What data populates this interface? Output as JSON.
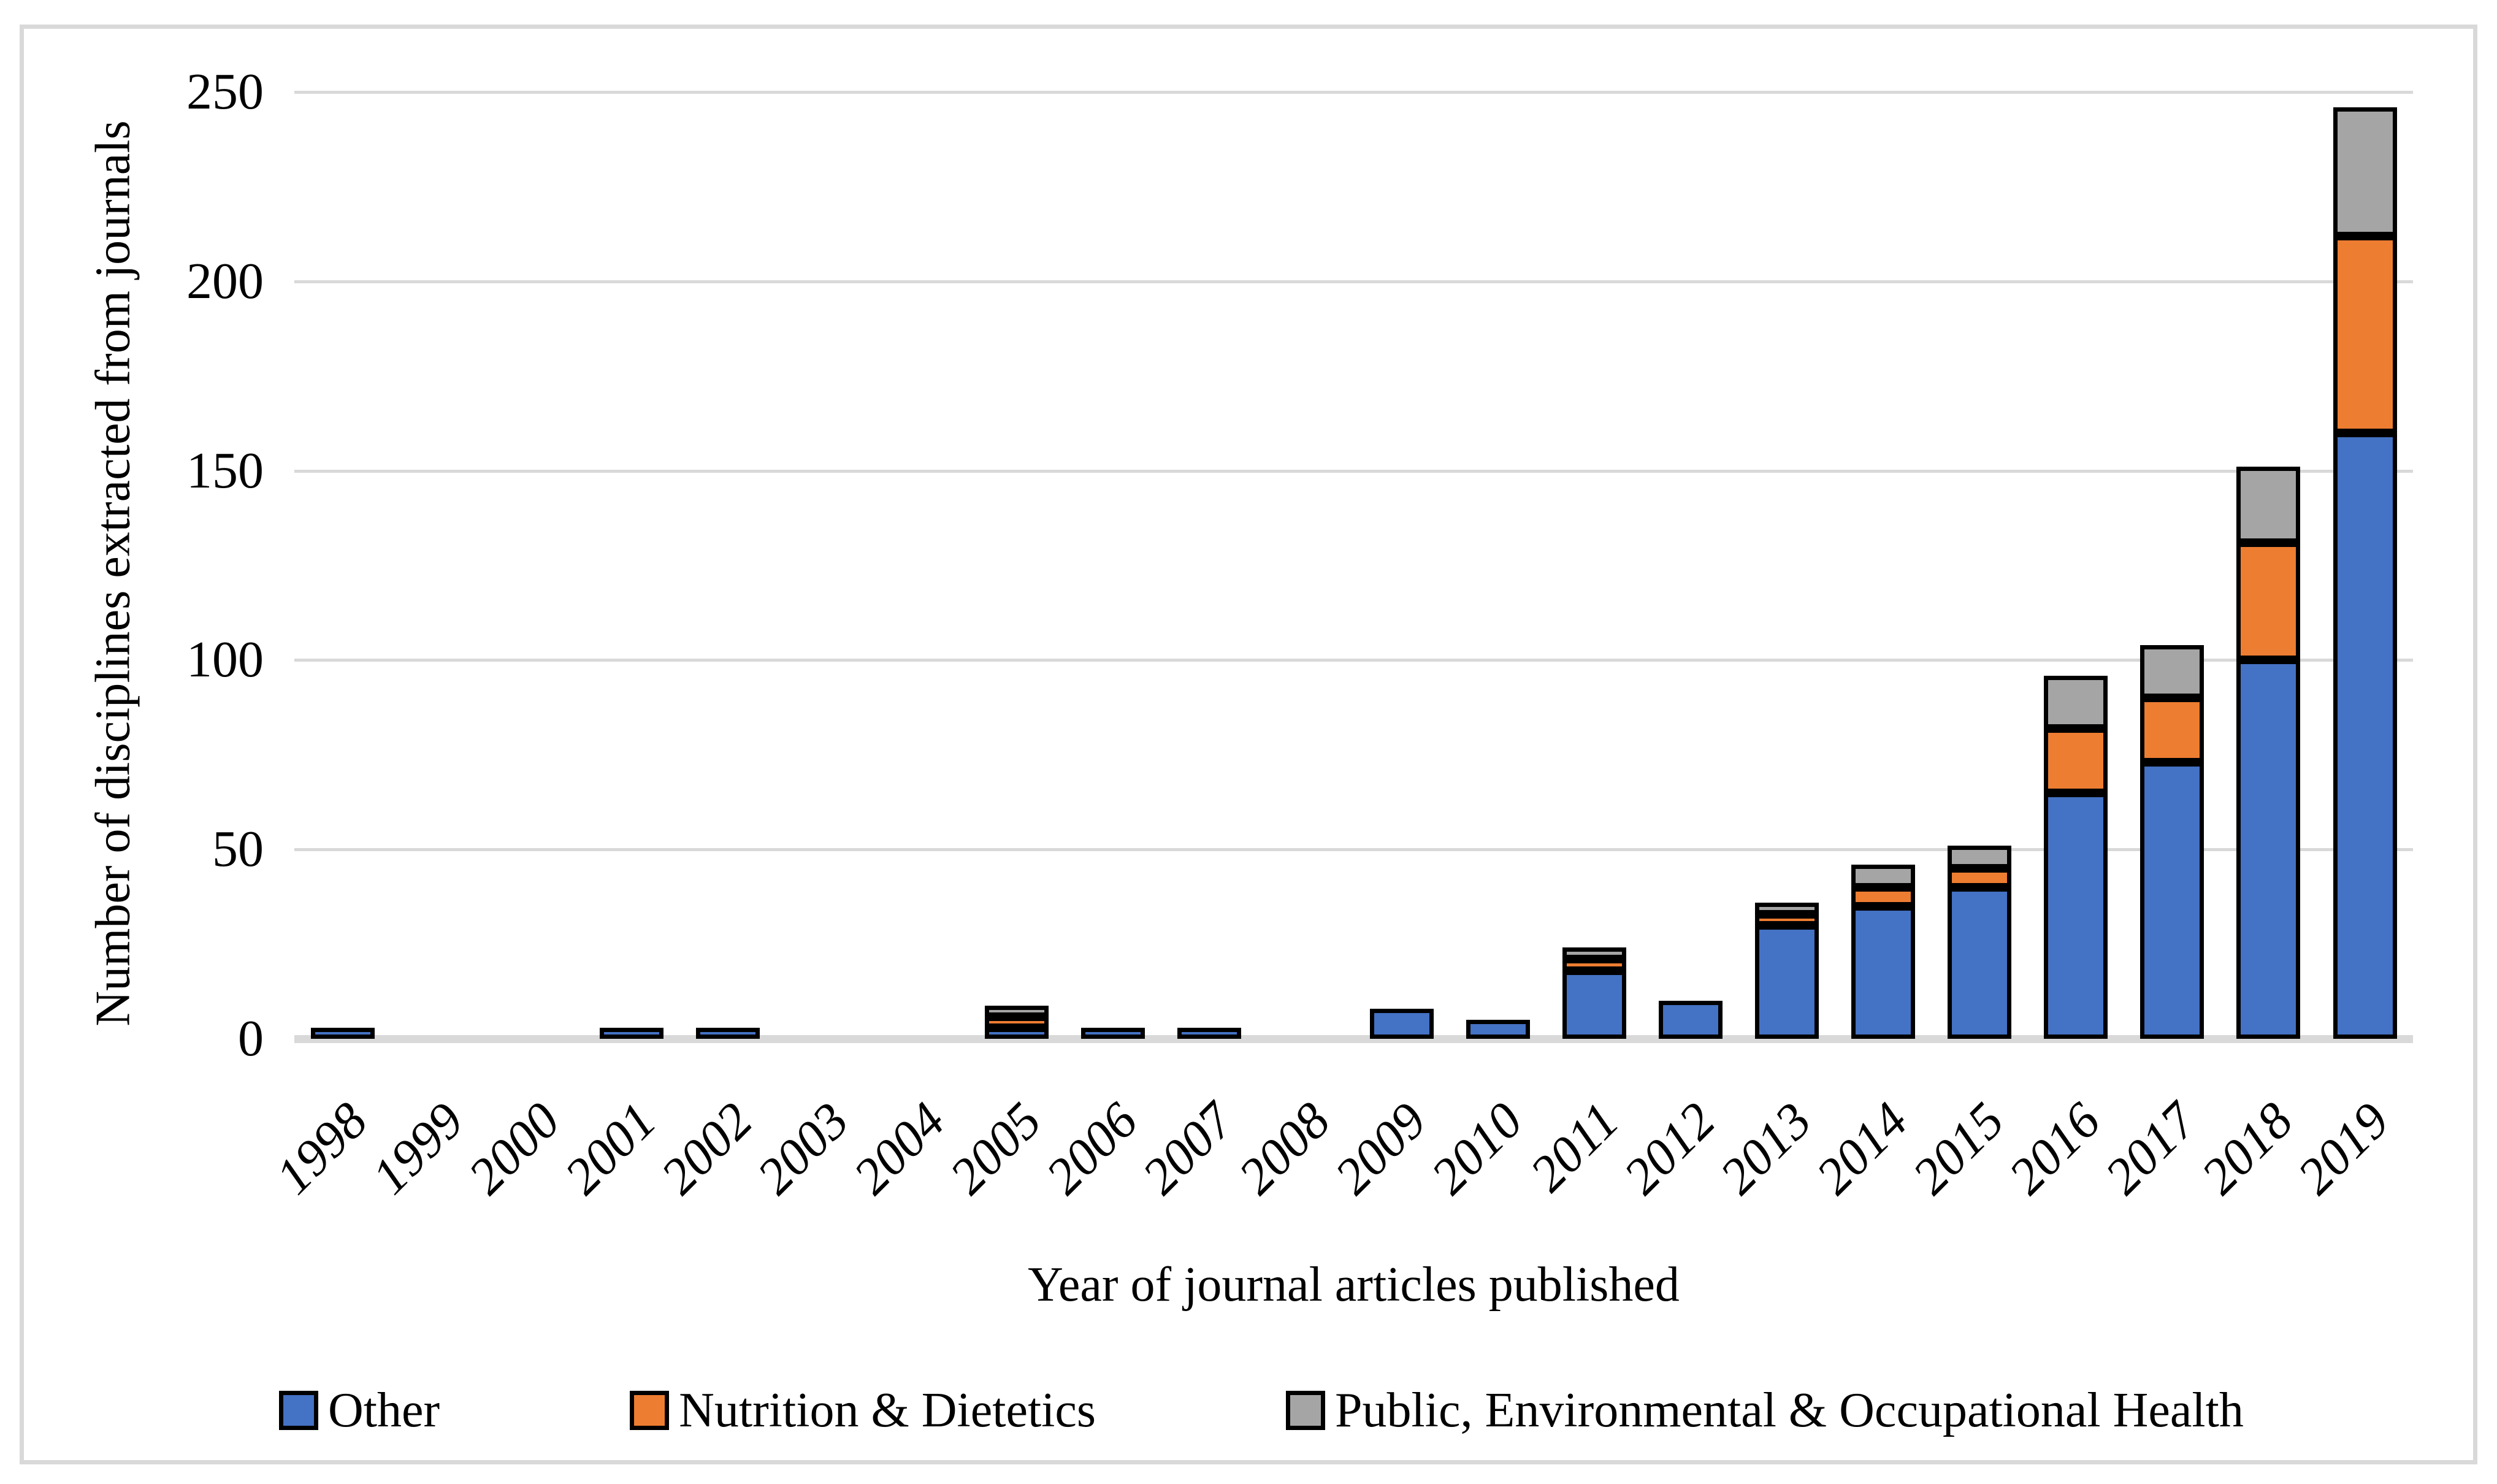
{
  "y_axis": {
    "title": "Number of disciplines extracted from journals",
    "ticks": [
      0,
      50,
      100,
      150,
      200,
      250
    ]
  },
  "x_axis": {
    "title": "Year of journal articles published"
  },
  "colors": {
    "other": "#4472C4",
    "nutrition": "#ED7D31",
    "public_health": "#A5A5A5",
    "bar_border": "#000000",
    "gridline": "#D9D9D9",
    "frame_border": "#D9D9D9",
    "text": "#000000"
  },
  "chart_data": {
    "type": "bar",
    "stacked": true,
    "title": "",
    "xlabel": "Year of journal articles published",
    "ylabel": "Number of disciplines extracted from journals",
    "ylim": [
      0,
      250
    ],
    "yticks": [
      0,
      50,
      100,
      150,
      200,
      250
    ],
    "gridlines": true,
    "legend_position": "bottom",
    "categories": [
      "1998",
      "1999",
      "2000",
      "2001",
      "2002",
      "2003",
      "2004",
      "2005",
      "2006",
      "2007",
      "2008",
      "2009",
      "2010",
      "2011",
      "2012",
      "2013",
      "2014",
      "2015",
      "2016",
      "2017",
      "2018",
      "2019"
    ],
    "series": [
      {
        "name": "Other",
        "color": "#4472C4",
        "values": [
          1,
          0,
          0,
          1,
          1,
          0,
          0,
          2,
          1,
          2,
          0,
          8,
          5,
          18,
          10,
          30,
          35,
          40,
          65,
          73,
          100,
          160
        ]
      },
      {
        "name": "Nutrition & Dietetics",
        "color": "#ED7D31",
        "values": [
          0,
          0,
          0,
          0,
          0,
          0,
          0,
          1,
          0,
          0,
          0,
          0,
          0,
          3,
          0,
          1,
          5,
          5,
          17,
          17,
          31,
          52
        ]
      },
      {
        "name": "Public, Environmental & Occupational Health",
        "color": "#A5A5A5",
        "values": [
          0,
          0,
          0,
          0,
          0,
          0,
          0,
          2,
          0,
          0,
          0,
          0,
          0,
          3,
          0,
          3,
          6,
          6,
          14,
          14,
          20,
          34
        ]
      }
    ]
  }
}
